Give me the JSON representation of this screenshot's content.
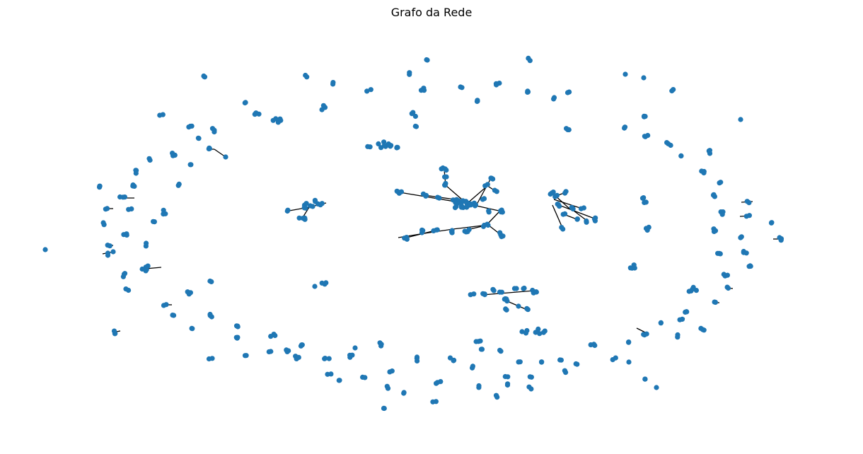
{
  "title": "Grafo da Rede",
  "colors": {
    "node": "#1f77b4",
    "edge": "#000000",
    "background": "#ffffff"
  }
}
